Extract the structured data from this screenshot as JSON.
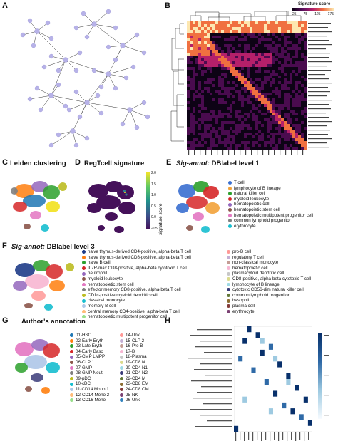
{
  "panels": {
    "A": {
      "letter": "A"
    },
    "B": {
      "letter": "B",
      "colorbar_title": "Signature score",
      "colorbar_ticks": [
        "25",
        "75",
        "125",
        "175"
      ]
    },
    "C": {
      "letter": "C",
      "title": "Leiden clustering"
    },
    "D": {
      "letter": "D",
      "title": "RegTcell signature",
      "colorbar_label": "signature score",
      "colorbar_ticks": [
        "2.0",
        "1.5",
        "1.0",
        "0.5",
        "0.0",
        "-0.5"
      ]
    },
    "E": {
      "letter": "E",
      "title_italic": "Sig-annot:",
      "title_rest": " DBlabel level 1",
      "legend": [
        {
          "label": "T cell",
          "color": "#3a6fd0"
        },
        {
          "label": "lymphocyte of B lineage",
          "color": "#f2a23a"
        },
        {
          "label": "natural killer cell",
          "color": "#2ca02c"
        },
        {
          "label": "myeloid leukocyte",
          "color": "#d62728"
        },
        {
          "label": "hematopoietic cell",
          "color": "#9467bd"
        },
        {
          "label": "hematopoietic stem cell",
          "color": "#8c564b"
        },
        {
          "label": "hematopoietic multipotent progenitor cell",
          "color": "#e377c2"
        },
        {
          "label": "common lymphoid progenitor",
          "color": "#7f7f7f"
        },
        {
          "label": "erythrocyte",
          "color": "#17becf"
        }
      ]
    },
    "F": {
      "letter": "F",
      "title_italic": "Sig-annot:",
      "title_rest": " DBlabel level 3",
      "legend_left": [
        {
          "label": "naive thymus-derived CD4-positive, alpha-beta T cell",
          "color": "#1f3c88"
        },
        {
          "label": "naive thymus-derived CD8-positive, alpha-beta T cell",
          "color": "#ff7f0e"
        },
        {
          "label": "naive B cell",
          "color": "#2ca02c"
        },
        {
          "label": "IL7R-max CD8-positive, alpha-beta cytotoxic T cell",
          "color": "#d62728"
        },
        {
          "label": "neutrophil",
          "color": "#9467bd"
        },
        {
          "label": "myeloid leukocyte",
          "color": "#8c564b"
        },
        {
          "label": "hematopoietic stem cell",
          "color": "#e377c2"
        },
        {
          "label": "effector memory CD8-positive, alpha-beta T cell",
          "color": "#7f7f7f"
        },
        {
          "label": "CD1c-positive myeloid dendritic cell",
          "color": "#bcbd22"
        },
        {
          "label": "classical monocyte",
          "color": "#17becf"
        },
        {
          "label": "memory B cell",
          "color": "#aec7e8"
        },
        {
          "label": "central memory CD4-positive, alpha-beta T cell",
          "color": "#ffbb78"
        },
        {
          "label": "hematopoietic multipotent progenitor cell",
          "color": "#98df8a"
        }
      ],
      "legend_right": [
        {
          "label": "pro-B cell",
          "color": "#ff9896"
        },
        {
          "label": "regulatory T cell",
          "color": "#c5b0d5"
        },
        {
          "label": "non-classical monocyte",
          "color": "#c49c94"
        },
        {
          "label": "hematopoietic cell",
          "color": "#f7b6d2"
        },
        {
          "label": "plasmacytoid dendritic cell",
          "color": "#c7c7c7"
        },
        {
          "label": "CD8-positive, alpha-beta cytotoxic T cell",
          "color": "#dbdb8d"
        },
        {
          "label": "lymphocyte of B lineage",
          "color": "#9edae5"
        },
        {
          "label": "cytotoxic CD56-dim natural killer cell",
          "color": "#393b79"
        },
        {
          "label": "common lymphoid progenitor",
          "color": "#637939"
        },
        {
          "label": "basophil",
          "color": "#8c6d31"
        },
        {
          "label": "plasma cell",
          "color": "#843c39"
        },
        {
          "label": "erythrocyte",
          "color": "#7b4173"
        }
      ]
    },
    "G": {
      "letter": "G",
      "title": "Author's annotation",
      "legend_left": [
        {
          "label": "01-HSC",
          "color": "#1f77b4"
        },
        {
          "label": "02-Early Eryth",
          "color": "#ff7f0e"
        },
        {
          "label": "03-Late Eryth",
          "color": "#2ca02c"
        },
        {
          "label": "04-Early Baso",
          "color": "#d62728"
        },
        {
          "label": "05-CMP LMPP",
          "color": "#9467bd"
        },
        {
          "label": "06-CLP 1",
          "color": "#8c564b"
        },
        {
          "label": "07-GMP",
          "color": "#e377c2"
        },
        {
          "label": "08-GMP Neut",
          "color": "#7f7f7f"
        },
        {
          "label": "09-pDC",
          "color": "#bcbd22"
        },
        {
          "label": "10-cDC",
          "color": "#17becf"
        },
        {
          "label": "11-CD14 Mono 1",
          "color": "#aec7e8"
        },
        {
          "label": "12-CD14 Mono 2",
          "color": "#ffbb78"
        },
        {
          "label": "13-CD16 Mono",
          "color": "#98df8a"
        }
      ],
      "legend_right": [
        {
          "label": "14-Unk",
          "color": "#ff9896"
        },
        {
          "label": "15-CLP 2",
          "color": "#c5b0d5"
        },
        {
          "label": "16-Pre B",
          "color": "#c49c94"
        },
        {
          "label": "17-B",
          "color": "#f7b6d2"
        },
        {
          "label": "18-Plasma",
          "color": "#c7c7c7"
        },
        {
          "label": "19-CD8 N",
          "color": "#dbdb8d"
        },
        {
          "label": "20-CD4 N1",
          "color": "#9edae5"
        },
        {
          "label": "21-CD4 N2",
          "color": "#393b79"
        },
        {
          "label": "22-CD4 M",
          "color": "#637939"
        },
        {
          "label": "23-CD8 EM",
          "color": "#8c6d31"
        },
        {
          "label": "24-CD8 CM",
          "color": "#843c39"
        },
        {
          "label": "25-NK",
          "color": "#7b4173"
        },
        {
          "label": "26-Unk",
          "color": "#3182bd"
        }
      ]
    },
    "H": {
      "letter": "H"
    }
  },
  "colors": {
    "node": "#b7b2e8",
    "heat_low": "#0d0315",
    "heat_mid": "#b5206a",
    "heat_high": "#fde7b0",
    "viridis_low": "#45115a",
    "viridis_high": "#f2e32a",
    "h_cell": "#2f6aa7"
  }
}
